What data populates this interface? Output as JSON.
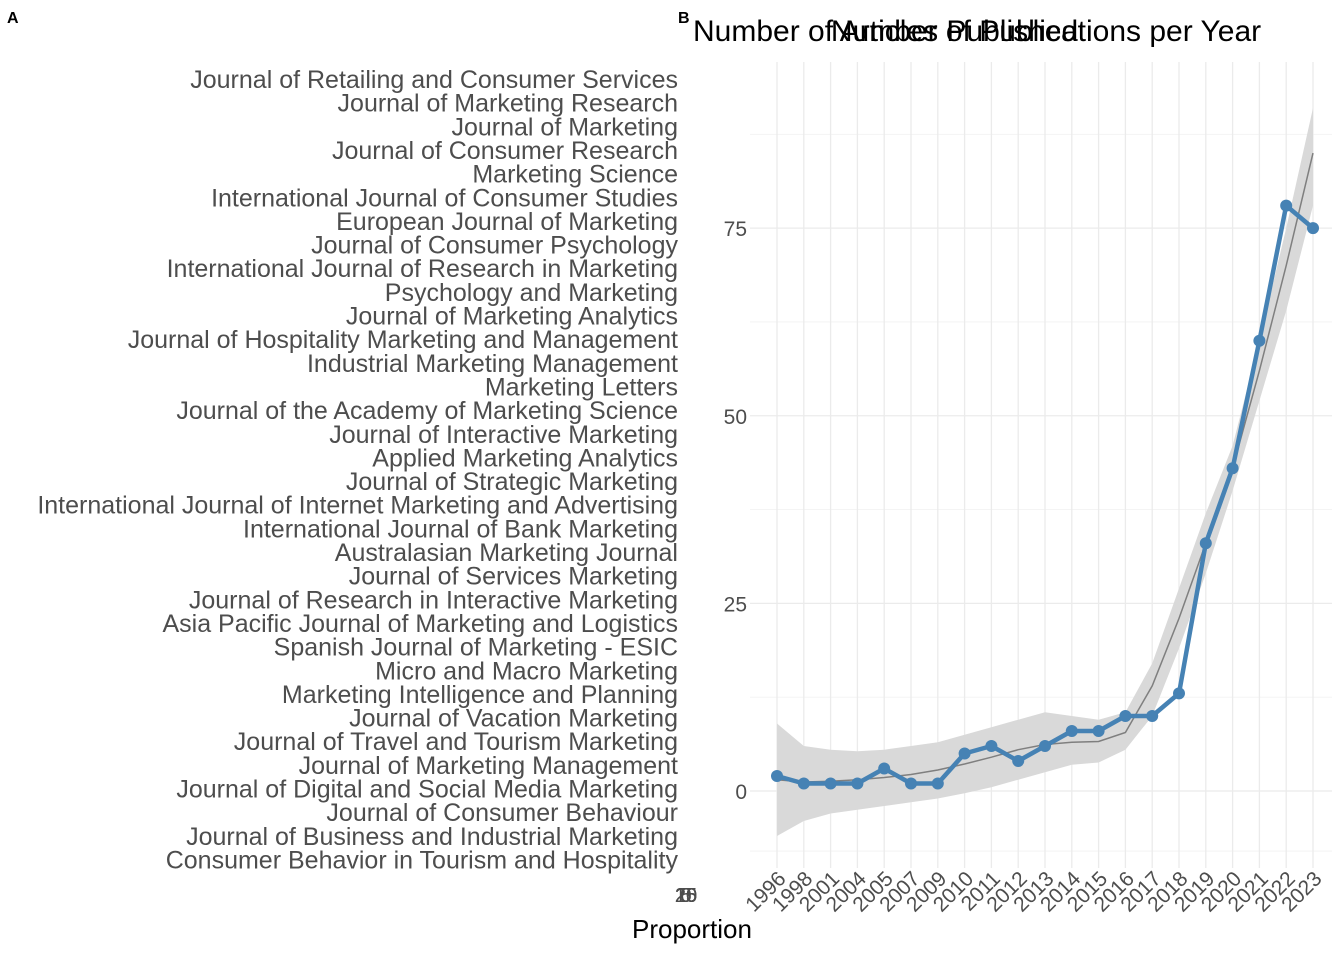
{
  "panels": {
    "a_tag": "A",
    "b_tag": "B"
  },
  "chart_data": [
    {
      "panel": "A",
      "type": "bar",
      "title": "Number of Articles Published",
      "xlabel": "Proportion",
      "ylabel": "",
      "x_tick_labels": [
        "25",
        "20",
        "15",
        "10",
        "5",
        "0"
      ],
      "categories": [
        "Journal of Retailing and Consumer Services",
        "Journal of Marketing Research",
        "Journal of Marketing",
        "Journal of Consumer Research",
        "Marketing Science",
        "International Journal of Consumer Studies",
        "European Journal of Marketing",
        "Journal of Consumer Psychology",
        "International Journal of Research in Marketing",
        "Psychology and Marketing",
        "Journal of Marketing Analytics",
        "Journal of Hospitality Marketing and Management",
        "Industrial Marketing Management",
        "Marketing Letters",
        "Journal of the Academy of Marketing Science",
        "Journal of Interactive Marketing",
        "Applied Marketing Analytics",
        "Journal of Strategic Marketing",
        "International Journal of Internet Marketing and Advertising",
        "International Journal of Bank Marketing",
        "Australasian Marketing Journal",
        "Journal of Services Marketing",
        "Journal of Research in Interactive Marketing",
        "Asia Pacific Journal of Marketing and Logistics",
        "Spanish Journal of Marketing - ESIC",
        "Micro and Macro Marketing",
        "Marketing Intelligence and Planning",
        "Journal of Vacation Marketing",
        "Journal of Travel and Tourism Marketing",
        "Journal of Marketing Management",
        "Journal of Digital and Social Media Marketing",
        "Journal of Consumer Behaviour",
        "Journal of Business and Industrial Marketing",
        "Consumer Behavior in Tourism and Hospitality"
      ],
      "grid": false,
      "legend": "none"
    },
    {
      "panel": "B",
      "type": "line",
      "title": "Number of Publications per Year",
      "xlabel": "",
      "ylabel": "",
      "x": [
        "1996",
        "1998",
        "2001",
        "2004",
        "2005",
        "2007",
        "2009",
        "2010",
        "2011",
        "2012",
        "2013",
        "2014",
        "2015",
        "2016",
        "2017",
        "2018",
        "2019",
        "2020",
        "2021",
        "2022",
        "2023"
      ],
      "series": [
        {
          "values": [
            2,
            1,
            1,
            1,
            3,
            1,
            1,
            5,
            6,
            4,
            6,
            8,
            8,
            10,
            10,
            13,
            33,
            43,
            60,
            78,
            75
          ],
          "color": "#4682B4"
        }
      ],
      "smooth": {
        "values": [
          1.5,
          1.2,
          1.3,
          1.5,
          1.8,
          2.2,
          2.8,
          3.6,
          4.5,
          5.5,
          6.2,
          6.5,
          6.6,
          7.8,
          14,
          23,
          33,
          43,
          56,
          70,
          85
        ],
        "band_lower": [
          -6,
          -4,
          -3,
          -2.5,
          -2,
          -1.5,
          -1,
          -0.3,
          0.5,
          1.5,
          2.5,
          3.5,
          3.8,
          5.5,
          10,
          19,
          29,
          40,
          52,
          64,
          78
        ],
        "band_upper": [
          9,
          6,
          5.5,
          5.3,
          5.5,
          6,
          6.5,
          7.5,
          8.5,
          9.5,
          10.5,
          10,
          9.5,
          10.5,
          17,
          27,
          37,
          46,
          60,
          75,
          91
        ],
        "line_color": "#7f7f7f",
        "band_color": "#d9d9d9"
      },
      "ylim": [
        -9.5,
        97
      ],
      "y_ticks": [
        0,
        25,
        50,
        75
      ],
      "grid": true,
      "legend": "none"
    }
  ]
}
